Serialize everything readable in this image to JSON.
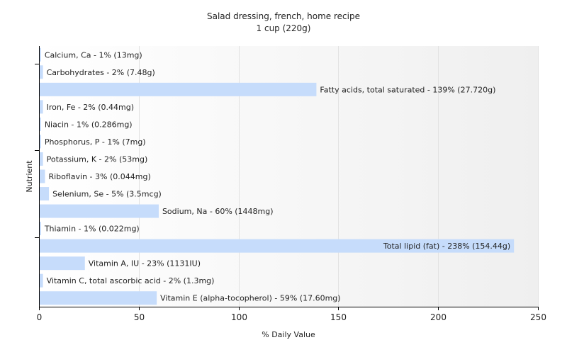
{
  "chart_data": {
    "type": "bar",
    "orientation": "horizontal",
    "title": "Salad dressing, french, home recipe",
    "subtitle": "1 cup (220g)",
    "xlabel": "% Daily Value",
    "ylabel": "Nutrient",
    "xlim": [
      0,
      250
    ],
    "xticks": [
      0,
      50,
      100,
      150,
      200,
      250
    ],
    "grid": true,
    "legend": "none",
    "bar_color": "#c6dcfb",
    "categories": [
      "Calcium, Ca",
      "Carbohydrates",
      "Fatty acids, total saturated",
      "Iron, Fe",
      "Niacin",
      "Phosphorus, P",
      "Potassium, K",
      "Riboflavin",
      "Selenium, Se",
      "Sodium, Na",
      "Thiamin",
      "Total lipid (fat)",
      "Vitamin A, IU",
      "Vitamin C, total ascorbic acid",
      "Vitamin E (alpha-tocopherol)"
    ],
    "values": [
      1,
      2,
      139,
      2,
      1,
      1,
      2,
      3,
      5,
      60,
      1,
      238,
      23,
      2,
      59
    ],
    "labels": [
      "Calcium, Ca - 1% (13mg)",
      "Carbohydrates - 2% (7.48g)",
      "Fatty acids, total saturated - 139% (27.720g)",
      "Iron, Fe - 2% (0.44mg)",
      "Niacin - 1% (0.286mg)",
      "Phosphorus, P - 1% (7mg)",
      "Potassium, K - 2% (53mg)",
      "Riboflavin - 3% (0.044mg)",
      "Selenium, Se - 5% (3.5mcg)",
      "Sodium, Na - 60% (1448mg)",
      "Thiamin - 1% (0.022mg)",
      "Total lipid (fat) - 238% (154.44g)",
      "Vitamin A, IU - 23% (1131IU)",
      "Vitamin C, total ascorbic acid - 2% (1.3mg)",
      "Vitamin E (alpha-tocopherol) - 59% (17.60mg)"
    ]
  }
}
